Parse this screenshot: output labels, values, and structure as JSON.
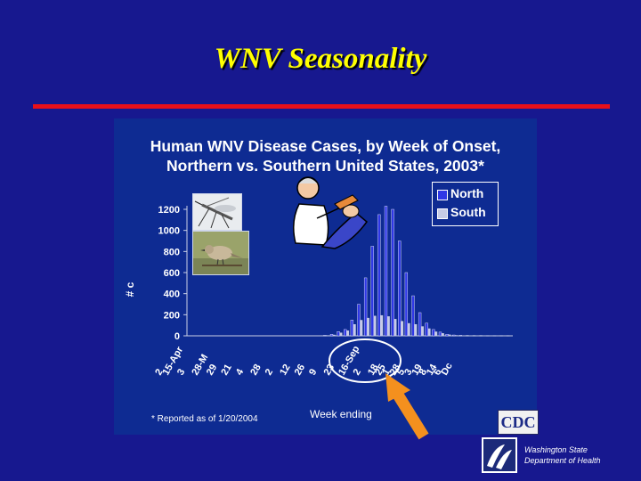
{
  "slide": {
    "title": "WNV Seasonality",
    "footnote": "* Reported as of 1/20/2004",
    "xlabel": "Week ending",
    "ylabel": "# c",
    "logos": {
      "cdc": "CDC",
      "wa_line1": "Washington State",
      "wa_line2": "Department of Health"
    }
  },
  "colors": {
    "background": "#17188f",
    "title": "#ffff00",
    "divider": "#e8101a",
    "panel": "#0e2b92",
    "north": "#2f37e6",
    "south": "#c6cbe6",
    "arrow": "#f4901e"
  },
  "icons": [
    "mosquito-photo",
    "bird-photo",
    "doctor-clipart",
    "cdc-logo",
    "wa-doh-logo",
    "orange-arrow"
  ],
  "chart_data": {
    "type": "bar",
    "title_line1": "Human WNV Disease Cases, by Week of Onset,",
    "title_line2": "Northern vs. Southern United States, 2003*",
    "xlabel": "Week ending",
    "ylim": [
      0,
      1200
    ],
    "yticks": [
      0,
      200,
      400,
      600,
      800,
      1000,
      1200
    ],
    "legend_position": "top-right",
    "grid": false,
    "tick_labels": [
      "2",
      "15-Apr",
      "3",
      "28-M",
      "29",
      "21",
      "4",
      "28",
      "2",
      "12",
      "26",
      "9",
      "23",
      "16-Sep",
      "2",
      "18",
      "25",
      "1",
      "28",
      "5",
      "3",
      "19",
      "8",
      "14",
      "6",
      "Dc"
    ],
    "tick_label_slots": [
      0,
      1,
      3,
      5,
      7,
      9,
      11,
      13,
      15,
      17,
      19,
      21,
      23,
      25,
      27,
      29,
      30,
      31,
      32,
      33,
      34,
      35,
      36,
      37,
      38,
      39
    ],
    "series": [
      {
        "name": "North",
        "values": [
          0,
          0,
          0,
          0,
          0,
          0,
          0,
          0,
          0,
          0,
          0,
          0,
          0,
          0,
          0,
          0,
          0,
          0,
          0,
          0,
          5,
          15,
          40,
          60,
          150,
          300,
          550,
          850,
          1150,
          1230,
          1200,
          900,
          600,
          380,
          220,
          120,
          60,
          35,
          15,
          8,
          5,
          3,
          2,
          2,
          1,
          1,
          1,
          1
        ]
      },
      {
        "name": "South",
        "values": [
          0,
          0,
          0,
          0,
          0,
          0,
          0,
          0,
          0,
          0,
          0,
          0,
          0,
          0,
          0,
          0,
          0,
          0,
          0,
          0,
          5,
          10,
          30,
          50,
          110,
          150,
          170,
          190,
          195,
          185,
          160,
          140,
          120,
          110,
          90,
          70,
          40,
          25,
          12,
          6,
          4,
          3,
          2,
          2,
          1,
          1,
          1,
          1
        ]
      }
    ]
  }
}
